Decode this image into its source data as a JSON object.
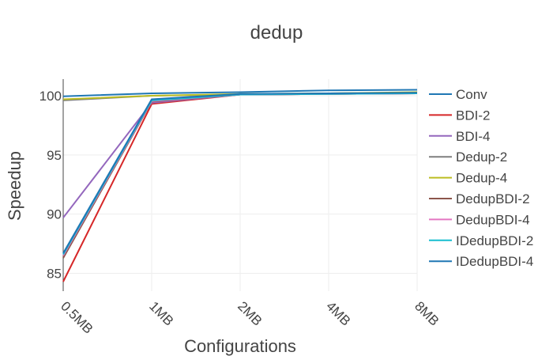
{
  "chart_data": {
    "type": "line",
    "title": "dedup",
    "xlabel": "Configurations",
    "ylabel": "Speedup",
    "categories": [
      "0.5MB",
      "1MB",
      "2MB",
      "4MB",
      "8MB"
    ],
    "ylim": [
      83.5,
      101.4
    ],
    "yticks": [
      85,
      90,
      95,
      100
    ],
    "grid": true,
    "legend_position": "right",
    "series": [
      {
        "name": "Conv",
        "color": "#1f77b4",
        "values": [
          99.95,
          100.2,
          100.3,
          100.45,
          100.5
        ]
      },
      {
        "name": "BDI-2",
        "color": "#d62728",
        "values": [
          84.3,
          99.3,
          100.1,
          100.15,
          100.2
        ]
      },
      {
        "name": "BDI-4",
        "color": "#9467bd",
        "values": [
          89.7,
          99.4,
          100.1,
          100.15,
          100.2
        ]
      },
      {
        "name": "Dedup-2",
        "color": "#7f7f7f",
        "values": [
          99.6,
          100.0,
          100.1,
          100.2,
          100.25
        ]
      },
      {
        "name": "Dedup-4",
        "color": "#bcbd22",
        "values": [
          99.7,
          100.0,
          100.15,
          100.2,
          100.3
        ]
      },
      {
        "name": "DedupBDI-2",
        "color": "#8c564b",
        "values": [
          86.3,
          99.5,
          100.1,
          100.15,
          100.2
        ]
      },
      {
        "name": "DedupBDI-4",
        "color": "#e377c2",
        "values": [
          86.5,
          99.55,
          100.1,
          100.15,
          100.2
        ]
      },
      {
        "name": "IDedupBDI-2",
        "color": "#17becf",
        "values": [
          86.6,
          99.6,
          100.1,
          100.15,
          100.2
        ]
      },
      {
        "name": "IDedupBDI-4",
        "color": "#1f77b4",
        "values": [
          86.7,
          99.7,
          100.15,
          100.2,
          100.25
        ]
      }
    ]
  }
}
